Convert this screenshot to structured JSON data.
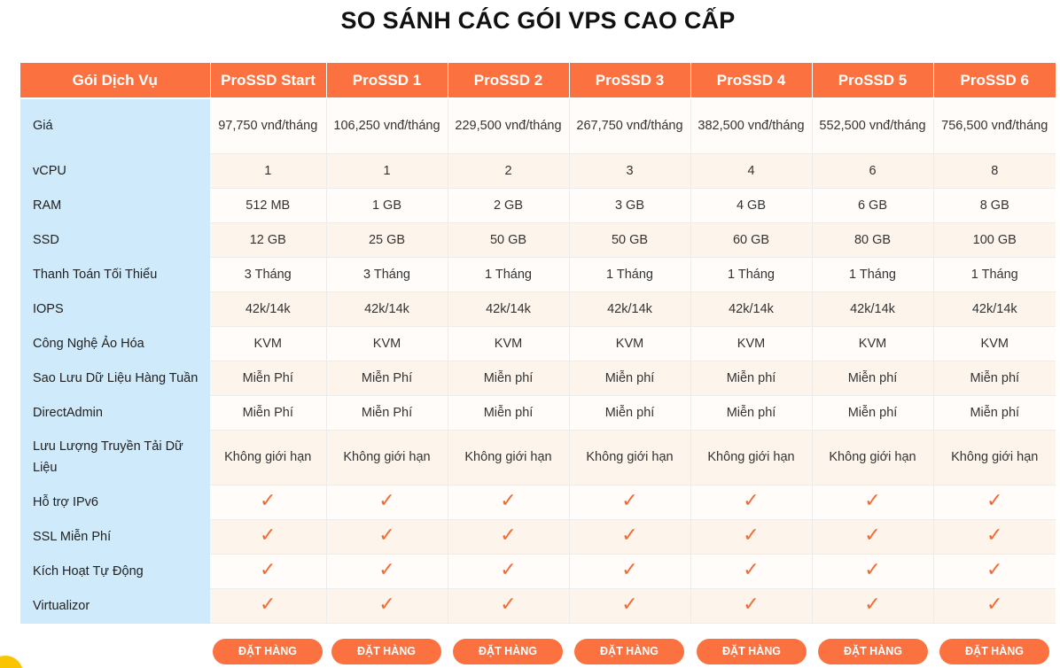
{
  "page": {
    "title": "SO SÁNH CÁC GÓI VPS CAO CẤP"
  },
  "table": {
    "header_label": "Gói Dịch Vụ",
    "plans": [
      "ProSSD Start",
      "ProSSD 1",
      "ProSSD 2",
      "ProSSD 3",
      "ProSSD 4",
      "ProSSD 5",
      "ProSSD 6"
    ],
    "rows": [
      {
        "label": "Giá",
        "values": [
          "97,750 vnđ/tháng",
          "106,250 vnđ/tháng",
          "229,500 vnđ/tháng",
          "267,750 vnđ/tháng",
          "382,500 vnđ/tháng",
          "552,500 vnđ/tháng",
          "756,500 vnđ/tháng"
        ]
      },
      {
        "label": "vCPU",
        "values": [
          "1",
          "1",
          "2",
          "3",
          "4",
          "6",
          "8"
        ]
      },
      {
        "label": "RAM",
        "values": [
          "512 MB",
          "1 GB",
          "2 GB",
          "3 GB",
          "4 GB",
          "6 GB",
          "8 GB"
        ]
      },
      {
        "label": "SSD",
        "values": [
          "12 GB",
          "25 GB",
          "50 GB",
          "50 GB",
          "60 GB",
          "80 GB",
          "100 GB"
        ]
      },
      {
        "label": "Thanh Toán Tối Thiểu",
        "values": [
          "3 Tháng",
          "3 Tháng",
          "1 Tháng",
          "1 Tháng",
          "1 Tháng",
          "1 Tháng",
          "1 Tháng"
        ]
      },
      {
        "label": "IOPS",
        "values": [
          "42k/14k",
          "42k/14k",
          "42k/14k",
          "42k/14k",
          "42k/14k",
          "42k/14k",
          "42k/14k"
        ]
      },
      {
        "label": "Công Nghệ Ảo Hóa",
        "values": [
          "KVM",
          "KVM",
          "KVM",
          "KVM",
          "KVM",
          "KVM",
          "KVM"
        ]
      },
      {
        "label": "Sao Lưu Dữ Liệu Hàng Tuần",
        "values": [
          "Miễn Phí",
          "Miễn Phí",
          "Miễn phí",
          "Miễn phí",
          "Miễn phí",
          "Miễn phí",
          "Miễn phí"
        ]
      },
      {
        "label": "DirectAdmin",
        "values": [
          "Miễn Phí",
          "Miễn Phí",
          "Miễn phí",
          "Miễn phí",
          "Miễn phí",
          "Miễn phí",
          "Miễn phí"
        ]
      },
      {
        "label": "Lưu Lượng Truyền Tải Dữ Liệu",
        "values": [
          "Không giới hạn",
          "Không giới hạn",
          "Không giới hạn",
          "Không giới hạn",
          "Không giới hạn",
          "Không giới hạn",
          "Không giới hạn"
        ]
      },
      {
        "label": "Hỗ trợ IPv6",
        "check": true
      },
      {
        "label": "SSL Miễn Phí",
        "check": true
      },
      {
        "label": "Kích Hoạt Tự Động",
        "check": true
      },
      {
        "label": "Virtualizor",
        "check": true
      }
    ],
    "check_icon": "checkmark-icon",
    "check_glyph": "✓"
  },
  "actions": {
    "order_label": "ĐẶT HÀNG"
  },
  "colors": {
    "accent": "#fb7240",
    "label_bg": "#cfeafa",
    "check": "#f26a35"
  }
}
